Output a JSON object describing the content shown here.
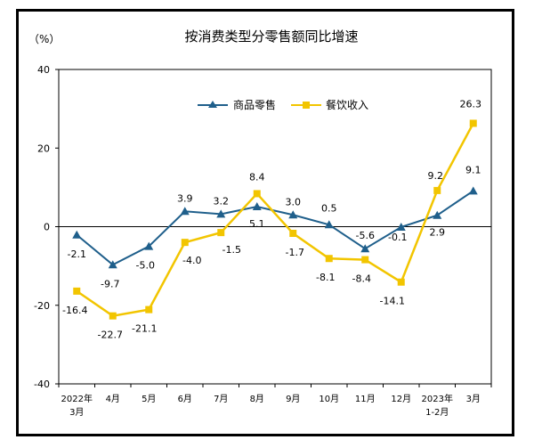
{
  "chart_data": {
    "type": "line",
    "title": "按消费类型分零售额同比增速",
    "y_unit_label": "（%）",
    "ylim": [
      -40,
      40
    ],
    "yticks": [
      "40",
      "20",
      "0",
      "-20",
      "-40"
    ],
    "ytick_values": [
      40,
      20,
      0,
      -20,
      -40
    ],
    "categories": [
      [
        "2022年",
        "3月"
      ],
      [
        "4月"
      ],
      [
        "5月"
      ],
      [
        "6月"
      ],
      [
        "7月"
      ],
      [
        "8月"
      ],
      [
        "9月"
      ],
      [
        "10月"
      ],
      [
        "11月"
      ],
      [
        "12月"
      ],
      [
        "2023年",
        "1-2月"
      ],
      [
        "3月"
      ]
    ],
    "legend_position": "top-center",
    "grid": false,
    "series": [
      {
        "name": "商品零售",
        "color": "#1f5f8b",
        "marker": "triangle",
        "values": [
          -2.1,
          -9.7,
          -5.0,
          3.9,
          3.2,
          5.1,
          3.0,
          0.5,
          -5.6,
          -0.1,
          2.9,
          9.1
        ],
        "labels": [
          "-2.1",
          "-9.7",
          "-5.0",
          "3.9",
          "3.2",
          "5.1",
          "3.0",
          "0.5",
          "-5.6",
          "-0.1",
          "2.9",
          "9.1"
        ]
      },
      {
        "name": "餐饮收入",
        "color": "#f2c500",
        "marker": "square",
        "values": [
          -16.4,
          -22.7,
          -21.1,
          -4.0,
          -1.5,
          8.4,
          -1.7,
          -8.1,
          -8.4,
          -14.1,
          9.2,
          26.3
        ],
        "labels": [
          "-16.4",
          "-22.7",
          "-21.1",
          "-4.0",
          "-1.5",
          "8.4",
          "-1.7",
          "-8.1",
          "-8.4",
          "-14.1",
          "9.2",
          "26.3"
        ]
      }
    ]
  }
}
